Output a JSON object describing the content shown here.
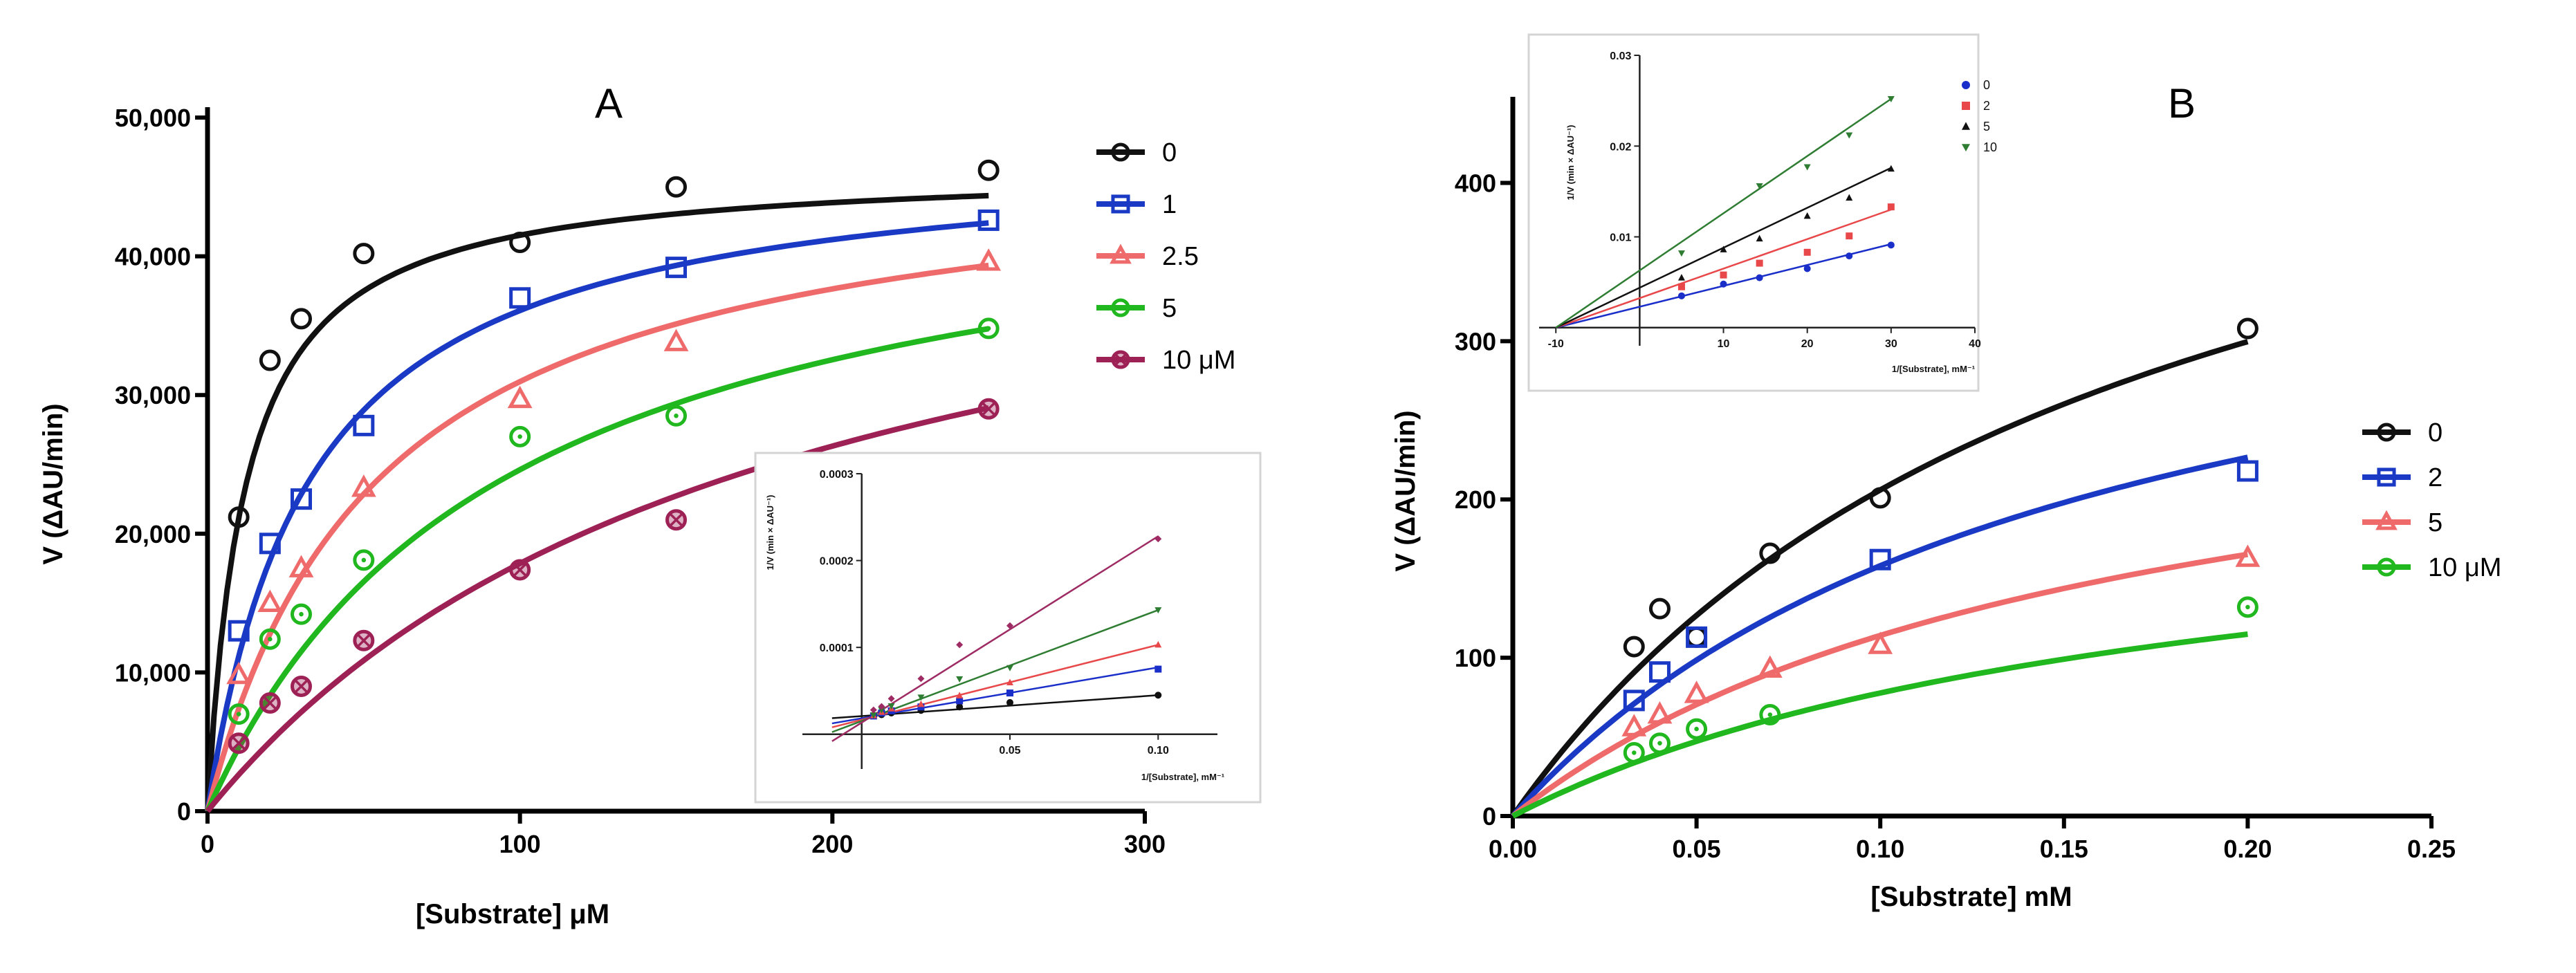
{
  "colors": {
    "black": "#111111",
    "blue": "#1a39c4",
    "red": "#ef6a6a",
    "green": "#20b81e",
    "maroon": "#9e2156",
    "inset_black": "#111111",
    "inset_blue": "#1a2fc9",
    "inset_red": "#e8484a",
    "inset_green": "#2e7d32",
    "inset_purple": "#9e2b63"
  },
  "chart_data": [
    {
      "id": "A",
      "type": "scatter",
      "panel_label": "A",
      "xlabel": "[Substrate] μM",
      "ylabel": "V (ΔAU/min)",
      "xlim": [
        0,
        300
      ],
      "ylim": [
        0,
        50000
      ],
      "x_ticks": [
        0,
        100,
        200,
        300
      ],
      "y_ticks": [
        0,
        10000,
        20000,
        30000,
        40000,
        50000
      ],
      "x_tick_labels": [
        "0",
        "100",
        "200",
        "300"
      ],
      "y_tick_labels": [
        "0",
        "10,000",
        "20,000",
        "30,000",
        "40,000",
        "50,000"
      ],
      "legend_position": "right",
      "series": [
        {
          "name": "0",
          "marker": "circle",
          "color": "#111111",
          "fit": {
            "vmax": 46500,
            "km": 12
          },
          "x": [
            10,
            20,
            30,
            50,
            100,
            150,
            250
          ],
          "y": [
            21200,
            32500,
            35500,
            40200,
            41000,
            45000,
            46200
          ]
        },
        {
          "name": "1",
          "marker": "square",
          "color": "#1a39c4",
          "fit": {
            "vmax": 48000,
            "km": 33
          },
          "x": [
            10,
            20,
            30,
            50,
            100,
            150,
            250
          ],
          "y": [
            13000,
            19300,
            22500,
            27800,
            37000,
            39200,
            42600
          ]
        },
        {
          "name": "2.5",
          "marker": "triangle",
          "color": "#ef6a6a",
          "fit": {
            "vmax": 48000,
            "km": 55
          },
          "x": [
            10,
            20,
            30,
            50,
            100,
            150,
            250
          ],
          "y": [
            9800,
            15000,
            17500,
            23300,
            29700,
            33800,
            39600
          ]
        },
        {
          "name": "5",
          "marker": "dotcircle",
          "color": "#20b81e",
          "fit": {
            "vmax": 48000,
            "km": 95
          },
          "x": [
            10,
            20,
            30,
            50,
            100,
            150,
            250
          ],
          "y": [
            7000,
            12400,
            14200,
            18100,
            27000,
            28500,
            34800
          ]
        },
        {
          "name": "10 μM",
          "marker": "xcircle",
          "color": "#9e2156",
          "fit": {
            "vmax": 50000,
            "km": 180
          },
          "x": [
            10,
            20,
            30,
            50,
            100,
            150,
            250
          ],
          "y": [
            4900,
            7800,
            9000,
            12300,
            17400,
            21000,
            29000
          ]
        }
      ],
      "inset": {
        "type": "line",
        "xlabel": "1/[Substrate], mM⁻¹",
        "ylabel": "1/V (min × ΔAU⁻¹)",
        "xlim": [
          -0.02,
          0.12
        ],
        "ylim": [
          -4e-05,
          0.0003
        ],
        "x_ticks": [
          0.05,
          0.1
        ],
        "y_ticks": [
          0.0001,
          0.0002,
          0.0003
        ],
        "x_tick_labels": [
          "0.05",
          "0.10"
        ],
        "y_tick_labels": [
          "0.0001",
          "0.0002",
          "0.0003"
        ],
        "series": [
          {
            "color": "#111111",
            "marker": "circle",
            "points": [
              [
                0.004,
                2.15e-05
              ],
              [
                0.0067,
                2.25e-05
              ],
              [
                0.01,
                2.45e-05
              ],
              [
                0.02,
                2.75e-05
              ],
              [
                0.033,
                3.15e-05
              ],
              [
                0.05,
                3.65e-05
              ],
              [
                0.1,
                4.5e-05
              ]
            ],
            "line": [
              [
                -0.01,
                1.85e-05
              ],
              [
                0.1,
                4.5e-05
              ]
            ]
          },
          {
            "color": "#1a2fc9",
            "marker": "square",
            "points": [
              [
                0.004,
                2.1e-05
              ],
              [
                0.0067,
                2.45e-05
              ],
              [
                0.01,
                2.7e-05
              ],
              [
                0.02,
                3.15e-05
              ],
              [
                0.033,
                3.85e-05
              ],
              [
                0.05,
                4.75e-05
              ],
              [
                0.1,
                7.5e-05
              ]
            ],
            "line": [
              [
                -0.01,
                1.25e-05
              ],
              [
                0.1,
                7.7e-05
              ]
            ]
          },
          {
            "color": "#e8484a",
            "marker": "triangle",
            "points": [
              [
                0.004,
                2.15e-05
              ],
              [
                0.0067,
                2.55e-05
              ],
              [
                0.01,
                2.95e-05
              ],
              [
                0.02,
                3.45e-05
              ],
              [
                0.033,
                4.45e-05
              ],
              [
                0.05,
                5.95e-05
              ],
              [
                0.1,
                0.000103
              ]
            ],
            "line": [
              [
                -0.01,
                8e-06
              ],
              [
                0.1,
                0.000103
              ]
            ]
          },
          {
            "color": "#2e7d32",
            "marker": "tri-down",
            "points": [
              [
                0.004,
                2.2e-05
              ],
              [
                0.0067,
                2.8e-05
              ],
              [
                0.01,
                3.25e-05
              ],
              [
                0.02,
                4.25e-05
              ],
              [
                0.033,
                6.35e-05
              ],
              [
                0.05,
                7.65e-05
              ],
              [
                0.1,
                0.000143
              ]
            ],
            "line": [
              [
                -0.01,
                2.5e-06
              ],
              [
                0.1,
                0.000143
              ]
            ]
          },
          {
            "color": "#9e2b63",
            "marker": "diamond",
            "points": [
              [
                0.004,
                2.8e-05
              ],
              [
                0.0067,
                3.2e-05
              ],
              [
                0.01,
                4.1e-05
              ],
              [
                0.02,
                6.4e-05
              ],
              [
                0.033,
                0.000103
              ],
              [
                0.05,
                0.000125
              ],
              [
                0.1,
                0.000225
              ]
            ],
            "line": [
              [
                -0.01,
                -8e-06
              ],
              [
                0.1,
                0.000228
              ]
            ]
          }
        ]
      }
    },
    {
      "id": "B",
      "type": "scatter",
      "panel_label": "B",
      "xlabel": "[Substrate] mM",
      "ylabel": "V (ΔAU/min)",
      "xlim": [
        0,
        0.25
      ],
      "ylim": [
        0,
        450
      ],
      "x_ticks": [
        0,
        0.05,
        0.1,
        0.15,
        0.2,
        0.25
      ],
      "y_ticks": [
        0,
        100,
        200,
        300,
        400
      ],
      "x_tick_labels": [
        "0.00",
        "0.05",
        "0.10",
        "0.15",
        "0.20",
        "0.25"
      ],
      "y_tick_labels": [
        "0",
        "100",
        "200",
        "300",
        "400"
      ],
      "legend_position": "right",
      "series": [
        {
          "name": "0",
          "marker": "circle",
          "color": "#111111",
          "fit": {
            "vmax": 550,
            "km": 0.167
          },
          "x": [
            0.033,
            0.04,
            0.05,
            0.07,
            0.1,
            0.2
          ],
          "y": [
            107,
            131,
            113,
            166,
            201,
            308
          ]
        },
        {
          "name": "2",
          "marker": "square",
          "color": "#1a39c4",
          "fit": {
            "vmax": 400,
            "km": 0.153
          },
          "x": [
            0.033,
            0.04,
            0.05,
            0.1,
            0.2
          ],
          "y": [
            73,
            91,
            113,
            162,
            218
          ]
        },
        {
          "name": "5",
          "marker": "triangle",
          "color": "#ef6a6a",
          "fit": {
            "vmax": 300,
            "km": 0.163
          },
          "x": [
            0.033,
            0.04,
            0.05,
            0.07,
            0.1,
            0.2
          ],
          "y": [
            56,
            64,
            77,
            93,
            108,
            163
          ]
        },
        {
          "name": "10 μM",
          "marker": "dotcircle",
          "color": "#20b81e",
          "fit": {
            "vmax": 220,
            "km": 0.183
          },
          "x": [
            0.033,
            0.04,
            0.05,
            0.07,
            0.2
          ],
          "y": [
            40,
            46,
            55,
            64,
            132
          ]
        }
      ],
      "inset": {
        "type": "line",
        "xlabel": "1/[Substrate], mM⁻¹",
        "ylabel": "1/V (min × ΔAU⁻¹)",
        "xlim": [
          -12,
          40
        ],
        "ylim": [
          -0.002,
          0.03
        ],
        "x_ticks": [
          -10,
          10,
          20,
          30,
          40
        ],
        "y_ticks": [
          0.01,
          0.02,
          0.03
        ],
        "x_tick_labels": [
          "-10",
          "10",
          "20",
          "30",
          "40"
        ],
        "y_tick_labels": [
          "0.01",
          "0.02",
          "0.03"
        ],
        "legend": [
          "0",
          "2",
          "5",
          "10"
        ],
        "series": [
          {
            "name": "0",
            "color": "#1a2fc9",
            "marker": "dot",
            "points": [
              [
                5,
                0.0035
              ],
              [
                10,
                0.0048
              ],
              [
                14.3,
                0.0055
              ],
              [
                20,
                0.0065
              ],
              [
                25,
                0.0079
              ],
              [
                30,
                0.0091
              ]
            ],
            "line": [
              [
                -10,
                0
              ],
              [
                30,
                0.0092
              ]
            ]
          },
          {
            "name": "2",
            "color": "#e8484a",
            "marker": "square",
            "points": [
              [
                5,
                0.0045
              ],
              [
                10,
                0.0058
              ],
              [
                14.3,
                0.0071
              ],
              [
                20,
                0.0083
              ],
              [
                25,
                0.0101
              ],
              [
                30,
                0.0133
              ]
            ],
            "line": [
              [
                -10,
                0
              ],
              [
                30,
                0.013
              ]
            ]
          },
          {
            "name": "5",
            "color": "#111111",
            "marker": "triangle",
            "points": [
              [
                5,
                0.0055
              ],
              [
                10,
                0.0086
              ],
              [
                14.3,
                0.0098
              ],
              [
                20,
                0.0123
              ],
              [
                25,
                0.0143
              ],
              [
                30,
                0.0175
              ]
            ],
            "line": [
              [
                -10,
                0
              ],
              [
                30,
                0.0176
              ]
            ]
          },
          {
            "name": "10",
            "color": "#2e7d32",
            "marker": "tri-down",
            "points": [
              [
                5,
                0.0082
              ],
              [
                14.3,
                0.0156
              ],
              [
                20,
                0.0177
              ],
              [
                25,
                0.0212
              ],
              [
                30,
                0.0252
              ]
            ],
            "line": [
              [
                -10,
                0
              ],
              [
                30,
                0.0252
              ]
            ]
          }
        ]
      }
    }
  ]
}
